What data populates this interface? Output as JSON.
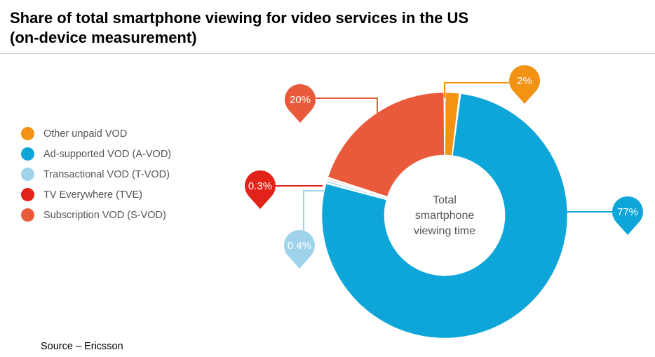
{
  "header": {
    "title_line1": "Share of total smartphone viewing for video services in the US",
    "title_line2": "(on-device measurement)"
  },
  "chart_data": {
    "type": "pie",
    "subtype": "donut",
    "title": "Share of total smartphone viewing for video services in the US (on-device measurement)",
    "center_label": [
      "Total",
      "smartphone",
      "viewing time"
    ],
    "unit": "%",
    "legend_position": "left",
    "series": [
      {
        "name": "Other unpaid VOD",
        "value": 2,
        "label": "2%",
        "color": "#f39314"
      },
      {
        "name": "Ad-supported VOD (A-VOD)",
        "value": 77,
        "label": "77%",
        "color": "#0ea6d9"
      },
      {
        "name": "Transactional VOD (T-VOD)",
        "value": 0.4,
        "label": "0.4%",
        "color": "#9fd3ec"
      },
      {
        "name": "TV Everywhere (TVE)",
        "value": 0.3,
        "label": "0.3%",
        "color": "#e2231a"
      },
      {
        "name": "Subscription VOD (S-VOD)",
        "value": 20,
        "label": "20%",
        "color": "#e95a3a"
      }
    ]
  },
  "footer": {
    "source": "Source – Ericsson"
  }
}
